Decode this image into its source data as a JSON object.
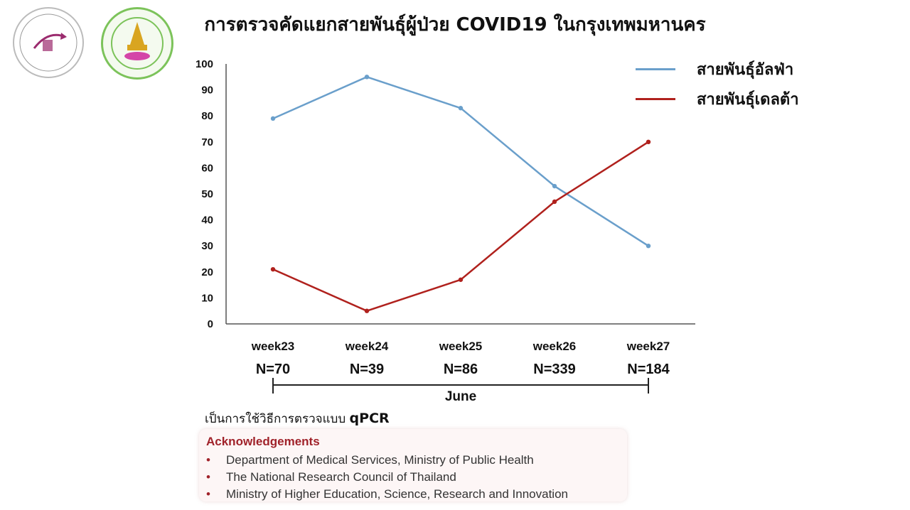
{
  "title": "การตรวจคัดแยกสายพันธุ์ผู้ป่วย COVID19 ในกรุงเทพมหานคร",
  "chart_data": {
    "type": "line",
    "title": "การตรวจคัดแยกสายพันธุ์ผู้ป่วย COVID19 ในกรุงเทพมหานคร",
    "categories": [
      "week23",
      "week24",
      "week25",
      "week26",
      "week27"
    ],
    "sample_sizes": [
      "N=70",
      "N=39",
      "N=86",
      "N=339",
      "N=184"
    ],
    "xlabel": "June",
    "ylabel": "",
    "ylim": [
      0,
      100
    ],
    "yticks": [
      0,
      10,
      20,
      30,
      40,
      50,
      60,
      70,
      80,
      90,
      100
    ],
    "grid": false,
    "legend_position": "top-right",
    "series": [
      {
        "name": "สายพันธุ์อัลฟ่า",
        "color": "#6a9fcb",
        "values": [
          79,
          95,
          83,
          53,
          30
        ]
      },
      {
        "name": "สายพันธุ์เดลต้า",
        "color": "#b0211d",
        "values": [
          21,
          5,
          17,
          47,
          70
        ]
      }
    ]
  },
  "method_prefix": "เป็นการใช้วิธีการตรวจแบบ",
  "method_bold": "qPCR",
  "acknowledgements": {
    "title": "Acknowledgements",
    "items": [
      "Department of Medical Services, Ministry of Public Health",
      "The National Research Council of Thailand",
      "Ministry of Higher Education, Science, Research and Innovation"
    ]
  },
  "icons": {
    "left_logo": "center-of-excellence-logo",
    "right_logo": "faculty-of-medicine-chulalongkorn-logo"
  }
}
